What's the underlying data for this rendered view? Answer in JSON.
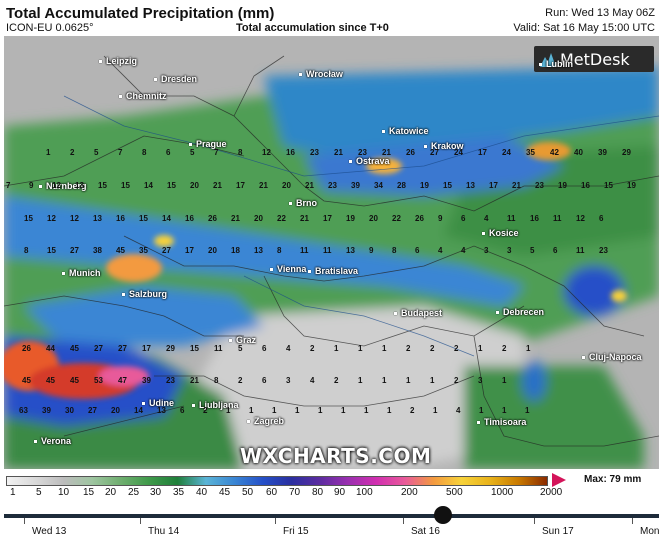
{
  "header": {
    "title": "Total Accumulated Precipitation (mm)",
    "model": "ICON-EU 0.0625°",
    "subtitle": "Total accumulation since T+0",
    "run": "Run: Wed 13 May 06Z",
    "valid": "Valid: Sat 16 May 15:00 UTC"
  },
  "logo": {
    "text": "MetDesk",
    "icon": "metdesk-logo-icon"
  },
  "watermark": "WXCHARTS.COM",
  "cities": [
    {
      "name": "Leipzig"
    },
    {
      "name": "Dresden"
    },
    {
      "name": "Chemnitz"
    },
    {
      "name": "Wrocław"
    },
    {
      "name": "Lublin"
    },
    {
      "name": "Prague"
    },
    {
      "name": "Katowice"
    },
    {
      "name": "Krakow"
    },
    {
      "name": "Ostrava"
    },
    {
      "name": "Nurnberg"
    },
    {
      "name": "Brno"
    },
    {
      "name": "Kosice"
    },
    {
      "name": "Munich"
    },
    {
      "name": "Vienna"
    },
    {
      "name": "Bratislava"
    },
    {
      "name": "Salzburg"
    },
    {
      "name": "Budapest"
    },
    {
      "name": "Debrecen"
    },
    {
      "name": "Graz"
    },
    {
      "name": "Cluj-Napoca"
    },
    {
      "name": "Udine"
    },
    {
      "name": "Ljubljana"
    },
    {
      "name": "Zagreb"
    },
    {
      "name": "Timisoara"
    },
    {
      "name": "Verona"
    }
  ],
  "point_values": [
    [
      "1",
      "2",
      "5",
      "7",
      "8",
      "6",
      "5",
      "7",
      "8",
      "12",
      "16",
      "23",
      "21",
      "23",
      "21",
      "26",
      "27",
      "24",
      "17",
      "24",
      "35",
      "42",
      "40",
      "39",
      "29"
    ],
    [
      "7",
      "9",
      "12",
      "13",
      "15",
      "15",
      "14",
      "15",
      "20",
      "21",
      "17",
      "21",
      "20",
      "21",
      "23",
      "39",
      "34",
      "28",
      "19",
      "15",
      "13",
      "17",
      "21",
      "23",
      "19",
      "16",
      "15",
      "19"
    ],
    [
      "15",
      "12",
      "12",
      "13",
      "16",
      "15",
      "14",
      "16",
      "26",
      "21",
      "20",
      "22",
      "21",
      "17",
      "19",
      "20",
      "22",
      "26",
      "9",
      "6",
      "4",
      "11",
      "16",
      "11",
      "12",
      "6"
    ],
    [
      "8",
      "15",
      "27",
      "38",
      "45",
      "35",
      "27",
      "17",
      "20",
      "18",
      "13",
      "8",
      "11",
      "11",
      "13",
      "9",
      "8",
      "6",
      "4",
      "4",
      "3",
      "3",
      "5",
      "6",
      "11",
      "23"
    ],
    [
      "26",
      "44",
      "45",
      "27",
      "27",
      "17",
      "29",
      "15",
      "11",
      "5",
      "6",
      "4",
      "2",
      "1",
      "1",
      "1",
      "2",
      "2",
      "2",
      "1",
      "2",
      "1"
    ],
    [
      "45",
      "45",
      "45",
      "53",
      "47",
      "39",
      "23",
      "21",
      "8",
      "2",
      "6",
      "3",
      "4",
      "2",
      "1",
      "1",
      "1",
      "1",
      "2",
      "3",
      "1"
    ],
    [
      "63",
      "39",
      "30",
      "27",
      "20",
      "14",
      "13",
      "6",
      "2",
      "1",
      "1",
      "1",
      "1",
      "1",
      "1",
      "1",
      "1",
      "2",
      "1",
      "4",
      "1",
      "1",
      "1"
    ]
  ],
  "legend": {
    "ticks": [
      "1",
      "5",
      "10",
      "15",
      "20",
      "25",
      "30",
      "35",
      "40",
      "45",
      "50",
      "60",
      "70",
      "80",
      "90",
      "100",
      "200",
      "500",
      "1000",
      "2000"
    ],
    "max_label": "Max: 79 mm",
    "colors": [
      "#f2f2f2",
      "#d9d9d9",
      "#bcbcbc",
      "#9ec5a0",
      "#6fae6f",
      "#3f9a4a",
      "#1f7f3a",
      "#5ab4d6",
      "#3a86d4",
      "#2550c8",
      "#2a2fa0",
      "#5b2ca0",
      "#9a2fb0",
      "#d12fb0",
      "#e85a9a",
      "#f39a40",
      "#f7d23a",
      "#e8b21a",
      "#c97a00",
      "#8a2a00"
    ]
  },
  "timeline": {
    "days": [
      "Wed 13",
      "Thu 14",
      "Fri 15",
      "Sat 16",
      "Sun 17",
      "Mon"
    ],
    "position_fraction": 0.67
  }
}
